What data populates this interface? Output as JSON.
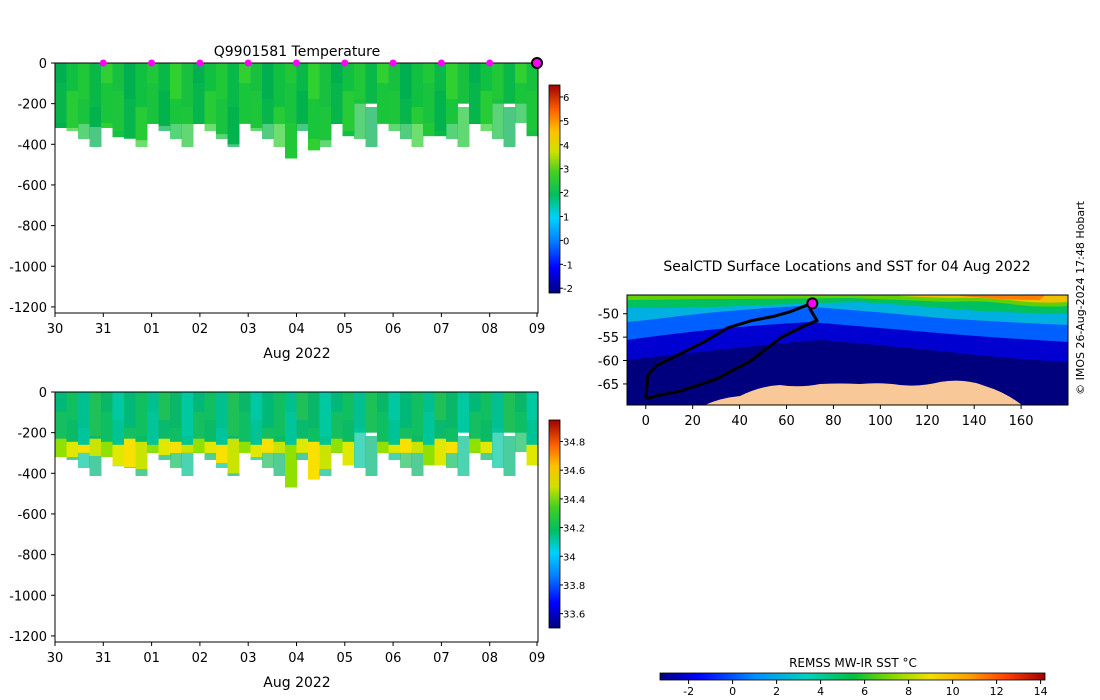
{
  "chart_data": [
    {
      "id": "temperature",
      "type": "heatmap",
      "title": "Q9901581  Temperature",
      "xlabel": "Aug 2022",
      "x_ticks": [
        "30",
        "31",
        "01",
        "02",
        "03",
        "04",
        "05",
        "06",
        "07",
        "08",
        "09"
      ],
      "y_ticks": [
        "0",
        "-200",
        "-400",
        "-600",
        "-800",
        "-1000",
        "-1200"
      ],
      "ylim": [
        -1230,
        0
      ],
      "colorbar": {
        "ticks": [
          "6",
          "5",
          "4",
          "3",
          "2",
          "1",
          "0",
          "-1",
          "-2"
        ],
        "range": [
          -2.2,
          6.5
        ]
      },
      "profile_depths": [
        -320,
        -320,
        -300,
        -315,
        -320,
        -365,
        -370,
        -380,
        -300,
        -310,
        -300,
        -300,
        -300,
        -300,
        -350,
        -400,
        -300,
        -320,
        -300,
        -300,
        -470,
        -300,
        -430,
        -380,
        -300,
        -360,
        -200,
        -200,
        -300,
        -300,
        -300,
        -300,
        -360,
        -360,
        -300,
        -200,
        -300,
        -300,
        -200,
        -200,
        -200,
        -360
      ],
      "surface_marker_days": [
        1,
        2,
        3,
        4,
        5,
        6,
        7,
        8,
        9,
        10
      ],
      "current_position_day": 10
    },
    {
      "id": "salinity",
      "type": "heatmap",
      "xlabel": "Aug 2022",
      "x_ticks": [
        "30",
        "31",
        "01",
        "02",
        "03",
        "04",
        "05",
        "06",
        "07",
        "08",
        "09"
      ],
      "y_ticks": [
        "0",
        "-200",
        "-400",
        "-600",
        "-800",
        "-1000",
        "-1200"
      ],
      "ylim": [
        -1230,
        0
      ],
      "colorbar": {
        "ticks": [
          "34.8",
          "34.6",
          "34.4",
          "34.2",
          "34",
          "33.8",
          "33.6"
        ],
        "range": [
          33.5,
          34.95
        ]
      },
      "profile_depths": [
        -320,
        -320,
        -300,
        -315,
        -320,
        -365,
        -370,
        -380,
        -300,
        -310,
        -300,
        -300,
        -300,
        -300,
        -350,
        -400,
        -300,
        -320,
        -300,
        -300,
        -470,
        -300,
        -430,
        -380,
        -300,
        -360,
        -200,
        -200,
        -300,
        -300,
        -300,
        -300,
        -360,
        -360,
        -300,
        -200,
        -300,
        -300,
        -200,
        -200,
        -200,
        -360
      ]
    },
    {
      "id": "sst_map",
      "type": "heatmap",
      "title": "SealCTD Surface Locations and SST for 04 Aug 2022",
      "x_ticks": [
        "0",
        "20",
        "40",
        "60",
        "80",
        "100",
        "120",
        "140",
        "160"
      ],
      "y_ticks": [
        "-50",
        "-55",
        "-60",
        "-65"
      ],
      "xlim": [
        -8,
        180
      ],
      "ylim": [
        -69.5,
        -46
      ],
      "track": [
        [
          0,
          -68
        ],
        [
          1,
          -63
        ],
        [
          5,
          -61
        ],
        [
          15,
          -58.5
        ],
        [
          25,
          -56
        ],
        [
          35,
          -53
        ],
        [
          45,
          -51.5
        ],
        [
          55,
          -50.5
        ],
        [
          62,
          -49.5
        ],
        [
          67,
          -48.5
        ],
        [
          71,
          -47.8
        ],
        [
          70,
          -49
        ],
        [
          73,
          -51.5
        ],
        [
          68,
          -52.5
        ],
        [
          58,
          -55
        ],
        [
          45,
          -60
        ],
        [
          30,
          -64
        ],
        [
          15,
          -66.5
        ],
        [
          5,
          -67.5
        ],
        [
          0,
          -68.2
        ]
      ],
      "current_position": [
        71,
        -47.8
      ]
    },
    {
      "id": "sst_colorbar",
      "type": "heatmap",
      "title": "REMSS MW-IR SST °C",
      "ticks": [
        "-2",
        "0",
        "2",
        "4",
        "6",
        "8",
        "10",
        "12",
        "14"
      ],
      "range": [
        -3.3,
        14.2
      ]
    }
  ],
  "credit": "© IMOS 26-Aug-2024 17:48 Hobart"
}
